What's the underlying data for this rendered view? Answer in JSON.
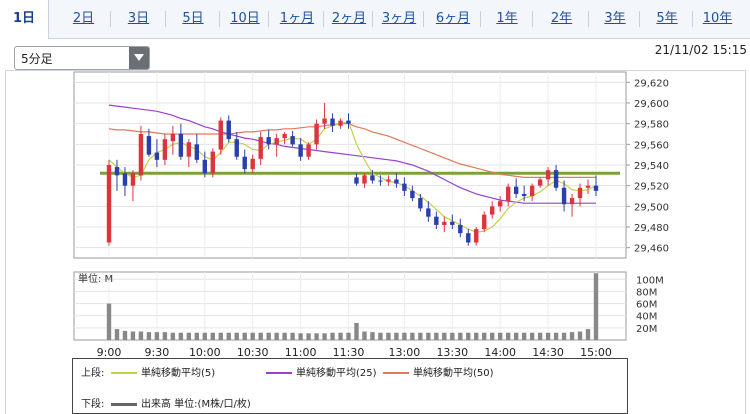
{
  "tabs": [
    "1日",
    "2日",
    "3日",
    "5日",
    "10日",
    "1ヶ月",
    "2ヶ月",
    "3ヶ月",
    "6ヶ月",
    "1年",
    "2年",
    "3年",
    "5年",
    "10年"
  ],
  "active_tab": 0,
  "interval_select": {
    "value": "5分足"
  },
  "timestamp": "21/11/02 15:15",
  "colors": {
    "up": "#d9363e",
    "down": "#2741a8",
    "ma5": "#c5cf47",
    "ma25": "#9b3fd0",
    "ma50": "#e07a5a",
    "reference": "#7ba23a",
    "volume": "#888888"
  },
  "chart_data": [
    {
      "type": "candlestick",
      "y_ticks": [
        "29,620",
        "29,600",
        "29,580",
        "29,560",
        "29,540",
        "29,520",
        "29,500",
        "29,480",
        "29,460"
      ],
      "ylim": [
        29450,
        29630
      ],
      "reference_line": 29532,
      "session_times": [
        "9:00",
        "9:05",
        "9:10",
        "9:15",
        "9:20",
        "9:25",
        "9:30",
        "9:35",
        "9:40",
        "9:45",
        "9:50",
        "9:55",
        "10:00",
        "10:05",
        "10:10",
        "10:15",
        "10:20",
        "10:25",
        "10:30",
        "10:35",
        "10:40",
        "10:45",
        "10:50",
        "10:55",
        "11:00",
        "11:05",
        "11:10",
        "11:15",
        "11:20",
        "11:25",
        "11:30",
        "12:30",
        "12:35",
        "12:40",
        "12:45",
        "12:50",
        "12:55",
        "13:00",
        "13:05",
        "13:10",
        "13:15",
        "13:20",
        "13:25",
        "13:30",
        "13:35",
        "13:40",
        "13:45",
        "13:50",
        "13:55",
        "14:00",
        "14:05",
        "14:10",
        "14:15",
        "14:20",
        "14:25",
        "14:30",
        "14:35",
        "14:40",
        "14:45",
        "14:50",
        "14:55",
        "15:00"
      ],
      "ohlc": [
        [
          29465,
          29545,
          29462,
          29540
        ],
        [
          29538,
          29545,
          29515,
          29530
        ],
        [
          29532,
          29538,
          29510,
          29520
        ],
        [
          29520,
          29535,
          29505,
          29532
        ],
        [
          29530,
          29578,
          29525,
          29570
        ],
        [
          29568,
          29575,
          29548,
          29550
        ],
        [
          29552,
          29565,
          29538,
          29545
        ],
        [
          29545,
          29570,
          29540,
          29565
        ],
        [
          29563,
          29578,
          29550,
          29570
        ],
        [
          29570,
          29580,
          29545,
          29548
        ],
        [
          29548,
          29565,
          29538,
          29562
        ],
        [
          29560,
          29570,
          29542,
          29545
        ],
        [
          29545,
          29553,
          29528,
          29532
        ],
        [
          29532,
          29556,
          29528,
          29553
        ],
        [
          29555,
          29586,
          29550,
          29583
        ],
        [
          29583,
          29588,
          29562,
          29565
        ],
        [
          29565,
          29572,
          29545,
          29548
        ],
        [
          29548,
          29555,
          29532,
          29536
        ],
        [
          29536,
          29550,
          29532,
          29546
        ],
        [
          29546,
          29572,
          29540,
          29567
        ],
        [
          29567,
          29574,
          29555,
          29560
        ],
        [
          29560,
          29570,
          29548,
          29566
        ],
        [
          29566,
          29572,
          29560,
          29570
        ],
        [
          29568,
          29573,
          29558,
          29560
        ],
        [
          29560,
          29566,
          29544,
          29548
        ],
        [
          29548,
          29562,
          29545,
          29560
        ],
        [
          29560,
          29584,
          29555,
          29580
        ],
        [
          29580,
          29600,
          29575,
          29585
        ],
        [
          29585,
          29590,
          29572,
          29578
        ],
        [
          29578,
          29585,
          29575,
          29583
        ],
        [
          29583,
          29590,
          29575,
          29580
        ],
        [
          29528,
          29532,
          29520,
          29522
        ],
        [
          29522,
          29532,
          29518,
          29530
        ],
        [
          29530,
          29535,
          29522,
          29525
        ],
        [
          29525,
          29530,
          29520,
          29524
        ],
        [
          29524,
          29530,
          29520,
          29526
        ],
        [
          29526,
          29532,
          29518,
          29522
        ],
        [
          29522,
          29528,
          29510,
          29515
        ],
        [
          29515,
          29520,
          29505,
          29508
        ],
        [
          29508,
          29512,
          29495,
          29498
        ],
        [
          29498,
          29505,
          29485,
          29490
        ],
        [
          29490,
          29495,
          29478,
          29482
        ],
        [
          29482,
          29490,
          29475,
          29485
        ],
        [
          29485,
          29492,
          29478,
          29482
        ],
        [
          29482,
          29488,
          29470,
          29474
        ],
        [
          29474,
          29478,
          29462,
          29465
        ],
        [
          29465,
          29480,
          29462,
          29478
        ],
        [
          29478,
          29495,
          29475,
          29492
        ],
        [
          29492,
          29505,
          29488,
          29500
        ],
        [
          29500,
          29510,
          29495,
          29505
        ],
        [
          29505,
          29522,
          29500,
          29519
        ],
        [
          29519,
          29527,
          29508,
          29512
        ],
        [
          29512,
          29520,
          29505,
          29510
        ],
        [
          29510,
          29522,
          29505,
          29520
        ],
        [
          29520,
          29528,
          29518,
          29526
        ],
        [
          29526,
          29538,
          29520,
          29535
        ],
        [
          29535,
          29540,
          29515,
          29518
        ],
        [
          29518,
          29525,
          29495,
          29502
        ],
        [
          29502,
          29512,
          29490,
          29508
        ],
        [
          29508,
          29522,
          29500,
          29518
        ],
        [
          29518,
          29526,
          29512,
          29520
        ],
        [
          29520,
          29530,
          29510,
          29515
        ]
      ],
      "ma5": [
        29545,
        29538,
        29532,
        29528,
        29530,
        29545,
        29552,
        29555,
        29560,
        29562,
        29558,
        29555,
        29548,
        29545,
        29552,
        29562,
        29562,
        29560,
        29555,
        29554,
        29560,
        29562,
        29564,
        29566,
        29565,
        29560,
        29565,
        29575,
        29578,
        29580,
        29582,
        29560,
        29545,
        29532,
        29528,
        29524,
        29523,
        29520,
        29515,
        29510,
        29504,
        29497,
        29490,
        29486,
        29482,
        29478,
        29475,
        29476,
        29480,
        29488,
        29498,
        29504,
        29508,
        29510,
        29514,
        29520,
        29525,
        29522,
        29516,
        29515,
        29516,
        29520
      ],
      "ma25": [
        29598,
        29597,
        29596,
        29595,
        29594,
        29593,
        29592,
        29590,
        29588,
        29585,
        29583,
        29580,
        29577,
        29575,
        29572,
        29570,
        29568,
        29566,
        29565,
        29563,
        29561,
        29560,
        29558,
        29557,
        29556,
        29555,
        29554,
        29553,
        29552,
        29551,
        29550,
        29549,
        29548,
        29547,
        29546,
        29545,
        29544,
        29542,
        29540,
        29537,
        29534,
        29530,
        29526,
        29522,
        29518,
        29515,
        29512,
        29510,
        29508,
        29506,
        29505,
        29504,
        29503,
        29503,
        29503,
        29503,
        29503,
        29503,
        29503,
        29503,
        29503,
        29503
      ],
      "ma50": [
        29575,
        29574,
        29574,
        29573,
        29572,
        29572,
        29571,
        29570,
        29570,
        29570,
        29570,
        29570,
        29570,
        29570,
        29570,
        29570,
        29571,
        29572,
        29572,
        29573,
        29574,
        29574,
        29575,
        29575,
        29576,
        29577,
        29577,
        29578,
        29579,
        29580,
        29580,
        29577,
        29575,
        29572,
        29570,
        29568,
        29565,
        29562,
        29559,
        29556,
        29553,
        29550,
        29547,
        29544,
        29541,
        29539,
        29537,
        29535,
        29533,
        29531,
        29530,
        29529,
        29528,
        29528,
        29528,
        29528,
        29528,
        29528,
        29528,
        29528,
        29528,
        29528
      ]
    },
    {
      "type": "bar",
      "unit_label": "単位: M",
      "y_ticks": [
        "100M",
        "80M",
        "60M",
        "40M",
        "20M"
      ],
      "ylim": [
        0,
        112
      ],
      "x_labels": [
        "9:00",
        "9:30",
        "10:00",
        "10:30",
        "11:00",
        "11:30",
        "13:00",
        "13:30",
        "14:00",
        "14:30",
        "15:00"
      ],
      "volume": [
        60,
        18,
        15,
        14,
        14,
        13,
        13,
        13,
        12,
        12,
        12,
        12,
        12,
        12,
        12,
        12,
        12,
        12,
        12,
        12,
        12,
        12,
        12,
        12,
        11,
        11,
        11,
        11,
        12,
        12,
        12,
        28,
        14,
        13,
        12,
        12,
        12,
        12,
        12,
        12,
        12,
        12,
        12,
        12,
        12,
        12,
        12,
        12,
        12,
        12,
        12,
        12,
        12,
        12,
        12,
        12,
        12,
        12,
        13,
        14,
        18,
        110
      ]
    }
  ],
  "legend": {
    "upper_label": "上段:",
    "lower_label": "下段:",
    "ma5": "単純移動平均(5)",
    "ma25": "単純移動平均(25)",
    "ma50": "単純移動平均(50)",
    "volume": "出来高 単位:(M株/口/枚)"
  }
}
